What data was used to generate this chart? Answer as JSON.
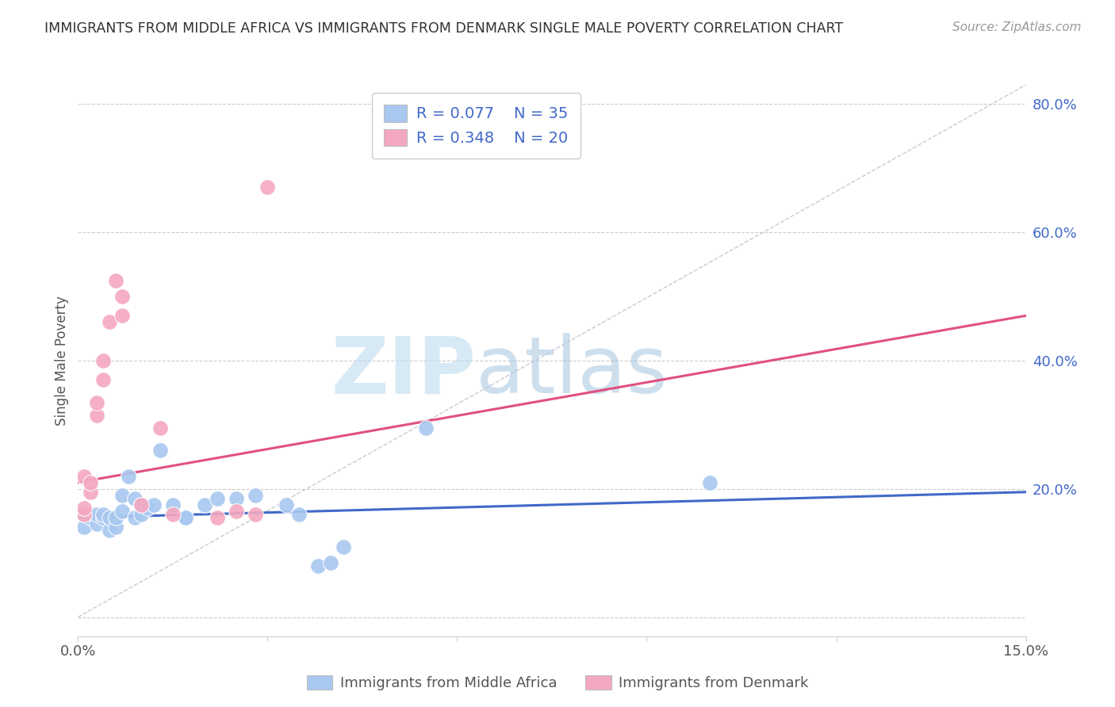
{
  "title": "IMMIGRANTS FROM MIDDLE AFRICA VS IMMIGRANTS FROM DENMARK SINGLE MALE POVERTY CORRELATION CHART",
  "source": "Source: ZipAtlas.com",
  "ylabel": "Single Male Poverty",
  "x_min": 0.0,
  "x_max": 0.15,
  "y_min": -0.03,
  "y_max": 0.83,
  "y_ticks_right": [
    0.0,
    0.2,
    0.4,
    0.6,
    0.8
  ],
  "y_tick_labels_right": [
    "",
    "20.0%",
    "40.0%",
    "60.0%",
    "80.0%"
  ],
  "blue_color": "#A8C8F0",
  "pink_color": "#F4A8C0",
  "blue_line_color": "#4169C8",
  "pink_line_color": "#E05080",
  "diag_line_color": "#C8C8D8",
  "legend_R1": "R = 0.077",
  "legend_N1": "N = 35",
  "legend_R2": "R = 0.348",
  "legend_N2": "N = 20",
  "legend_label1": "Immigrants from Middle Africa",
  "legend_label2": "Immigrants from Denmark",
  "watermark_zip": "ZIP",
  "watermark_atlas": "atlas",
  "blue_scatter_x": [
    0.001,
    0.001,
    0.002,
    0.003,
    0.003,
    0.004,
    0.004,
    0.005,
    0.005,
    0.006,
    0.006,
    0.007,
    0.007,
    0.008,
    0.009,
    0.009,
    0.01,
    0.01,
    0.011,
    0.012,
    0.013,
    0.015,
    0.017,
    0.017,
    0.02,
    0.022,
    0.025,
    0.028,
    0.033,
    0.035,
    0.038,
    0.04,
    0.042,
    0.055,
    0.1
  ],
  "blue_scatter_y": [
    0.14,
    0.16,
    0.155,
    0.145,
    0.16,
    0.155,
    0.16,
    0.135,
    0.155,
    0.14,
    0.155,
    0.165,
    0.19,
    0.22,
    0.155,
    0.185,
    0.16,
    0.175,
    0.17,
    0.175,
    0.26,
    0.175,
    0.155,
    0.155,
    0.175,
    0.185,
    0.185,
    0.19,
    0.175,
    0.16,
    0.08,
    0.085,
    0.11,
    0.295,
    0.21
  ],
  "pink_scatter_x": [
    0.001,
    0.001,
    0.001,
    0.002,
    0.002,
    0.003,
    0.003,
    0.004,
    0.004,
    0.005,
    0.006,
    0.007,
    0.007,
    0.01,
    0.013,
    0.015,
    0.022,
    0.025,
    0.028,
    0.03
  ],
  "pink_scatter_y": [
    0.16,
    0.17,
    0.22,
    0.195,
    0.21,
    0.315,
    0.335,
    0.37,
    0.4,
    0.46,
    0.525,
    0.47,
    0.5,
    0.175,
    0.295,
    0.16,
    0.155,
    0.165,
    0.16,
    0.67
  ],
  "blue_line_x": [
    0.0,
    0.15
  ],
  "blue_line_y": [
    0.155,
    0.195
  ],
  "pink_line_x": [
    0.0,
    0.15
  ],
  "pink_line_y": [
    0.21,
    0.47
  ],
  "diag_line_x": [
    0.0,
    0.15
  ],
  "diag_line_y": [
    0.0,
    0.83
  ]
}
